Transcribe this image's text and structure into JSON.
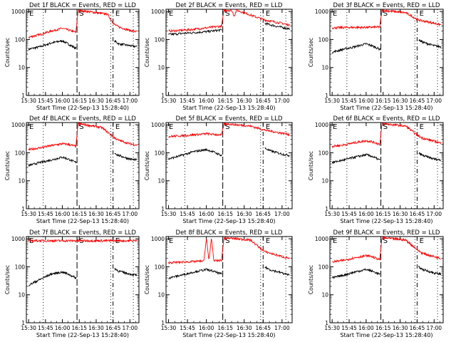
{
  "figure": {
    "panels": [
      {
        "title": "Det 1f BLACK = Events, RED = LLD",
        "markers": [
          "E",
          "S",
          "E"
        ]
      },
      {
        "title": "Det 2f BLACK = Events, RED = LLD",
        "markers": [
          "E",
          "S",
          "E"
        ]
      },
      {
        "title": "Det 3f BLACK = Events, RED = LLD",
        "markers": [
          "E",
          "S",
          "E"
        ]
      },
      {
        "title": "Det 4f BLACK = Events, RED = LLD",
        "markers": [
          "E",
          "S",
          "E"
        ]
      },
      {
        "title": "Det 5f BLACK = Events, RED = LLD",
        "markers": [
          "E",
          "S",
          "E"
        ]
      },
      {
        "title": "Det 6f BLACK = Events, RED = LLD",
        "markers": [
          "E",
          "S",
          "E"
        ]
      },
      {
        "title": "Det 7f BLACK = Events, RED = LLD",
        "markers": [
          "E",
          "S",
          "E"
        ]
      },
      {
        "title": "Det 8f BLACK = Events, RED = LLD",
        "markers": [
          "E",
          "S",
          "E"
        ]
      },
      {
        "title": "Det 9f BLACK = Events, RED = LLD",
        "markers": [
          "E",
          "S",
          "E"
        ]
      }
    ],
    "ylabel": "Counts/sec",
    "xlabel": "Start Time (22-Sep-13 15:28:40)",
    "xtick_labels": [
      "15:30",
      "15:45",
      "16:00",
      "16:15",
      "16:30",
      "16:45",
      "17:00"
    ],
    "ytick_labels": [
      "1",
      "10",
      "100",
      "1000"
    ],
    "colors": {
      "events": "#000000",
      "lld": "#ff0000",
      "axes": "#000000",
      "background": "#ffffff"
    }
  },
  "chart_data": {
    "type": "line",
    "layout": "3x3 grid",
    "y_scale": "log",
    "ylim": [
      1,
      1200
    ],
    "xlim": [
      "15:28",
      "17:08"
    ],
    "vlines": {
      "dotted": [
        "15:43",
        "16:13",
        "16:43",
        "17:03"
      ],
      "dashed": [
        "16:13"
      ],
      "dash_dot": [
        "16:45"
      ]
    },
    "panels": [
      {
        "series": [
          {
            "name": "Events",
            "x": [
              "15:30",
              "15:40",
              "15:50",
              "16:00",
              "16:05",
              "16:12",
              "16:46",
              "16:50",
              "17:00",
              "17:06"
            ],
            "values": [
              45,
              55,
              75,
              90,
              70,
              48,
              90,
              70,
              60,
              55
            ]
          },
          {
            "name": "LLD",
            "x": [
              "15:30",
              "15:40",
              "15:50",
              "16:00",
              "16:05",
              "16:12",
              "16:14",
              "16:40",
              "16:46",
              "16:50",
              "17:00",
              "17:06"
            ],
            "values": [
              120,
              150,
              200,
              250,
              220,
              180,
              1100,
              800,
              350,
              280,
              210,
              190
            ]
          }
        ]
      },
      {
        "series": [
          {
            "name": "Events",
            "x": [
              "15:30",
              "15:45",
              "16:00",
              "16:12",
              "16:46",
              "16:55",
              "17:06"
            ],
            "values": [
              150,
              170,
              190,
              220,
              380,
              300,
              240
            ]
          },
          {
            "name": "LLD",
            "x": [
              "15:30",
              "15:45",
              "16:00",
              "16:12",
              "16:14",
              "16:20",
              "16:22",
              "16:24",
              "16:30",
              "16:46",
              "17:00",
              "17:06"
            ],
            "values": [
              200,
              220,
              260,
              300,
              1100,
              1100,
              700,
              1100,
              900,
              500,
              380,
              320
            ]
          }
        ]
      },
      {
        "series": [
          {
            "name": "Events",
            "x": [
              "15:30",
              "15:40",
              "15:50",
              "16:00",
              "16:05",
              "16:12",
              "16:46",
              "16:50",
              "17:00",
              "17:06"
            ],
            "values": [
              35,
              45,
              55,
              70,
              60,
              45,
              100,
              80,
              60,
              55
            ]
          },
          {
            "name": "LLD",
            "x": [
              "15:30",
              "15:45",
              "16:00",
              "16:12",
              "16:14",
              "16:35",
              "16:46",
              "17:00",
              "17:06"
            ],
            "values": [
              260,
              270,
              270,
              280,
              1100,
              900,
              500,
              380,
              330
            ]
          }
        ]
      },
      {
        "series": [
          {
            "name": "Events",
            "x": [
              "15:30",
              "15:40",
              "15:50",
              "16:00",
              "16:05",
              "16:12",
              "16:46",
              "16:50",
              "17:00",
              "17:06"
            ],
            "values": [
              35,
              45,
              55,
              70,
              60,
              45,
              100,
              80,
              60,
              55
            ]
          },
          {
            "name": "LLD",
            "x": [
              "15:30",
              "15:40",
              "15:50",
              "16:00",
              "16:05",
              "16:12",
              "16:14",
              "16:35",
              "16:46",
              "16:50",
              "17:00",
              "17:06"
            ],
            "values": [
              130,
              150,
              180,
              210,
              200,
              170,
              1100,
              800,
              350,
              280,
              210,
              190
            ]
          }
        ]
      },
      {
        "series": [
          {
            "name": "Events",
            "x": [
              "15:30",
              "15:40",
              "15:50",
              "16:00",
              "16:05",
              "16:12",
              "16:46",
              "16:50",
              "17:00",
              "17:06"
            ],
            "values": [
              60,
              80,
              110,
              130,
              110,
              80,
              150,
              120,
              90,
              80
            ]
          },
          {
            "name": "LLD",
            "x": [
              "15:30",
              "15:45",
              "16:00",
              "16:12",
              "16:14",
              "16:35",
              "16:46",
              "17:00",
              "17:06"
            ],
            "values": [
              380,
              420,
              480,
              430,
              1100,
              900,
              650,
              500,
              450
            ]
          }
        ]
      },
      {
        "series": [
          {
            "name": "Events",
            "x": [
              "15:30",
              "15:40",
              "15:50",
              "16:00",
              "16:05",
              "16:12",
              "16:46",
              "16:50",
              "17:00",
              "17:06"
            ],
            "values": [
              45,
              55,
              70,
              85,
              75,
              55,
              100,
              80,
              60,
              55
            ]
          },
          {
            "name": "LLD",
            "x": [
              "15:30",
              "15:40",
              "15:50",
              "16:00",
              "16:05",
              "16:12",
              "16:14",
              "16:35",
              "16:46",
              "16:50",
              "17:00",
              "17:06"
            ],
            "values": [
              170,
              190,
              230,
              270,
              250,
              200,
              1100,
              900,
              400,
              330,
              260,
              220
            ]
          }
        ]
      },
      {
        "series": [
          {
            "name": "Events",
            "x": [
              "15:30",
              "15:40",
              "15:50",
              "16:00",
              "16:05",
              "16:12",
              "16:46",
              "16:50",
              "17:00",
              "17:06"
            ],
            "values": [
              22,
              35,
              55,
              65,
              55,
              40,
              90,
              70,
              55,
              50
            ]
          },
          {
            "name": "LLD",
            "x": [
              "15:30",
              "15:45",
              "16:00",
              "16:12",
              "16:46",
              "16:55",
              "17:06"
            ],
            "values": [
              850,
              850,
              850,
              850,
              850,
              850,
              850
            ]
          }
        ]
      },
      {
        "series": [
          {
            "name": "Events",
            "x": [
              "15:30",
              "15:40",
              "15:50",
              "16:00",
              "16:05",
              "16:12",
              "16:46",
              "16:50",
              "17:00",
              "17:06"
            ],
            "values": [
              40,
              50,
              65,
              80,
              70,
              55,
              100,
              80,
              60,
              50
            ]
          },
          {
            "name": "LLD",
            "x": [
              "15:30",
              "15:45",
              "15:58",
              "16:00",
              "16:02",
              "16:04",
              "16:06",
              "16:12",
              "16:14",
              "16:35",
              "16:46",
              "17:00",
              "17:06"
            ],
            "values": [
              140,
              150,
              160,
              1100,
              160,
              1100,
              160,
              170,
              1100,
              900,
              350,
              230,
              200
            ]
          }
        ]
      },
      {
        "series": [
          {
            "name": "Events",
            "x": [
              "15:30",
              "15:40",
              "15:50",
              "16:00",
              "16:05",
              "16:12",
              "16:46",
              "16:50",
              "17:00",
              "17:06"
            ],
            "values": [
              40,
              50,
              65,
              80,
              70,
              55,
              100,
              80,
              60,
              55
            ]
          },
          {
            "name": "LLD",
            "x": [
              "15:30",
              "15:40",
              "15:50",
              "16:00",
              "16:05",
              "16:12",
              "16:14",
              "16:35",
              "16:46",
              "16:50",
              "17:00",
              "17:06"
            ],
            "values": [
              150,
              170,
              210,
              250,
              230,
              180,
              1100,
              900,
              380,
              300,
              230,
              200
            ]
          }
        ]
      }
    ]
  }
}
